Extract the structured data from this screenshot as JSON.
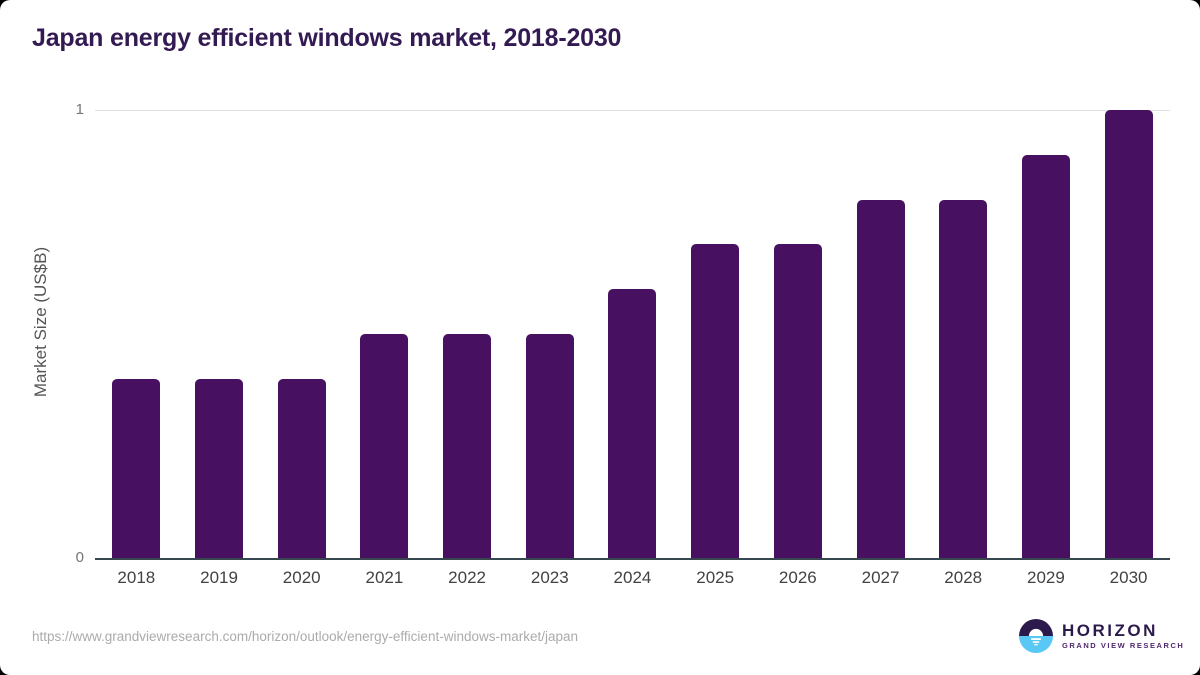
{
  "header": {
    "title": "Japan energy efficient windows market, 2018-2030"
  },
  "chart_data": {
    "type": "bar",
    "title": "Japan energy efficient windows market, 2018-2030",
    "categories": [
      "2018",
      "2019",
      "2020",
      "2021",
      "2022",
      "2023",
      "2024",
      "2025",
      "2026",
      "2027",
      "2028",
      "2029",
      "2030"
    ],
    "values": [
      0.4,
      0.4,
      0.4,
      0.5,
      0.5,
      0.5,
      0.6,
      0.7,
      0.7,
      0.8,
      0.8,
      0.9,
      1.0
    ],
    "xlabel": "",
    "ylabel": "Market Size (US$B)",
    "ylim": [
      0,
      1
    ],
    "ytick_labels": [
      "0",
      "1"
    ],
    "gridlines": "single horizontal gridline at y=1",
    "legend": "none",
    "bar_color": "#471061"
  },
  "footer": {
    "source_url": "https://www.grandviewresearch.com/horizon/outlook/energy-efficient-windows-market/japan",
    "logo": {
      "brand": "HORIZON",
      "sub_brand": "GRAND VIEW RESEARCH"
    }
  },
  "colors": {
    "title_text": "#331a52",
    "bar": "#471061",
    "axis_line": "#37474f",
    "gridline": "#e2e2e2",
    "tick_label": "#757575",
    "category_label": "#424242",
    "url_text": "#ababab",
    "logo_purple": "#2c1a4d",
    "logo_blue": "#5ac8f5"
  }
}
